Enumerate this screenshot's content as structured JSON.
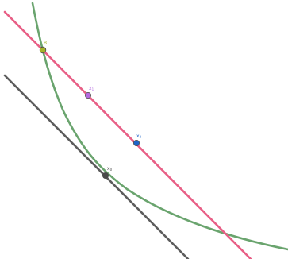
{
  "curves": {
    "hyperbola": {
      "name": "curve",
      "color": "#6aa46e"
    },
    "secant_line": {
      "name": "line-through-B",
      "color": "#e85f86"
    },
    "tangent_line": {
      "name": "tangent-at-x0",
      "color": "#5d5d5d"
    }
  },
  "points": {
    "B": {
      "label": "B",
      "color": "#a7b32a",
      "label_color": "#a7b32a"
    },
    "x1": {
      "label": "x",
      "sub": "1",
      "color": "#b56ae0",
      "label_color": "#b56ae0"
    },
    "x2": {
      "label": "x",
      "sub": "2",
      "color": "#1f64c8",
      "label_color": "#1f64c8"
    },
    "x0": {
      "label": "x",
      "sub": "0",
      "color": "#4a4a4a",
      "label_color": "#4a4a4a"
    }
  }
}
